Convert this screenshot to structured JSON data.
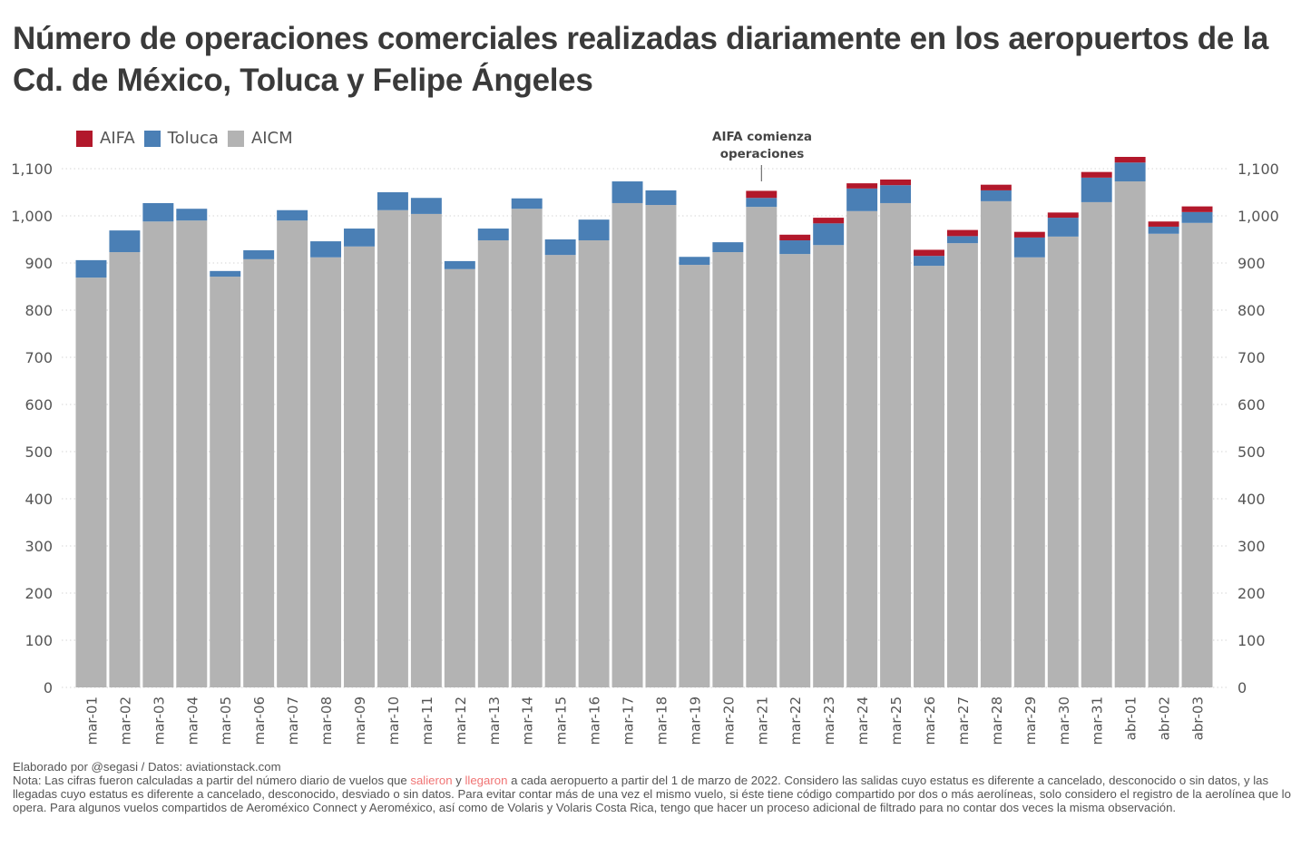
{
  "title": "Número de operaciones comerciales realizadas diariamente en los aeropuertos de la Cd. de México, Toluca y Felipe Ángeles",
  "legend": [
    {
      "name": "AIFA",
      "color": "#b2182b"
    },
    {
      "name": "Toluca",
      "color": "#4a7fb5"
    },
    {
      "name": "AICM",
      "color": "#b3b3b3"
    }
  ],
  "annotation": {
    "text_line1": "AIFA comienza",
    "text_line2": "operaciones",
    "category": "mar-21"
  },
  "footer": {
    "credit": "Elaborado por @segasi / Datos: aviationstack.com",
    "note_part1": "Nota: Las cifras fueron calculadas a partir del número diario de vuelos que ",
    "highlight1": "salieron",
    "note_part2": " y ",
    "highlight2": "llegaron",
    "note_part3": " a cada aeropuerto a partir del 1 de marzo de 2022. Considero las salidas cuyo estatus es diferente a cancelado, desconocido o sin datos, y las llegadas cuyo estatus es diferente a cancelado, desconocido, desviado o sin datos. Para evitar contar más de una vez el mismo vuelo, si éste tiene código compartido por dos o más aerolíneas, solo considero el registro de la aerolínea que lo opera. Para algunos vuelos compartidos de Aeroméxico Connect y Aeroméxico, así como de Volaris y Volaris Costa Rica, tengo que hacer un proceso adicional de filtrado para no contar dos veces la misma observación."
  },
  "chart_data": {
    "type": "bar",
    "stacked": true,
    "title": "Número de operaciones comerciales realizadas diariamente en los aeropuertos de la Cd. de México, Toluca y Felipe Ángeles",
    "xlabel": "",
    "ylabel": "",
    "ylim": [
      0,
      1100
    ],
    "yticks": [
      0,
      100,
      200,
      300,
      400,
      500,
      600,
      700,
      800,
      900,
      1000,
      1100
    ],
    "ytick_labels": [
      "0",
      "100",
      "200",
      "300",
      "400",
      "500",
      "600",
      "700",
      "800",
      "900",
      "1,000",
      "1,100"
    ],
    "y_axis_both_sides": true,
    "grid": "horizontal dotted",
    "legend_position": "top-left",
    "categories": [
      "mar-01",
      "mar-02",
      "mar-03",
      "mar-04",
      "mar-05",
      "mar-06",
      "mar-07",
      "mar-08",
      "mar-09",
      "mar-10",
      "mar-11",
      "mar-12",
      "mar-13",
      "mar-14",
      "mar-15",
      "mar-16",
      "mar-17",
      "mar-18",
      "mar-19",
      "mar-20",
      "mar-21",
      "mar-22",
      "mar-23",
      "mar-24",
      "mar-25",
      "mar-26",
      "mar-27",
      "mar-28",
      "mar-29",
      "mar-30",
      "mar-31",
      "abr-01",
      "abr-02",
      "abr-03"
    ],
    "series": [
      {
        "name": "AICM",
        "color": "#b3b3b3",
        "values": [
          869,
          923,
          988,
          990,
          871,
          908,
          990,
          912,
          935,
          1012,
          1004,
          887,
          948,
          1015,
          917,
          948,
          1027,
          1023,
          896,
          923,
          1019,
          919,
          938,
          1010,
          1027,
          894,
          942,
          1031,
          912,
          956,
          1029,
          1073,
          962,
          985
        ]
      },
      {
        "name": "Toluca",
        "color": "#4a7fb5",
        "values": [
          37,
          46,
          39,
          25,
          12,
          19,
          22,
          34,
          38,
          38,
          34,
          17,
          25,
          22,
          33,
          44,
          46,
          31,
          17,
          21,
          19,
          29,
          46,
          48,
          38,
          21,
          15,
          23,
          42,
          40,
          52,
          40,
          15,
          23
        ]
      },
      {
        "name": "AIFA",
        "color": "#b2182b",
        "values": [
          0,
          0,
          0,
          0,
          0,
          0,
          0,
          0,
          0,
          0,
          0,
          0,
          0,
          0,
          0,
          0,
          0,
          0,
          0,
          0,
          15,
          12,
          12,
          11,
          12,
          13,
          13,
          12,
          12,
          11,
          12,
          12,
          11,
          12
        ]
      }
    ]
  }
}
